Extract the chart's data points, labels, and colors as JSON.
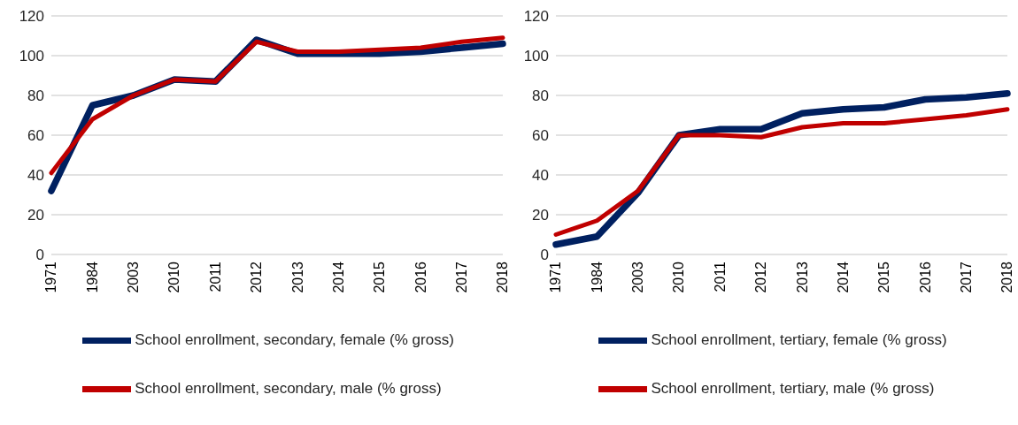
{
  "chart_data": [
    {
      "type": "line",
      "categories": [
        "1971",
        "1984",
        "2003",
        "2010",
        "2011",
        "2012",
        "2013",
        "2014",
        "2015",
        "2016",
        "2017",
        "2018"
      ],
      "series": [
        {
          "name": "School enrollment, secondary, female (% gross)",
          "color": "#002060",
          "values": [
            32,
            75,
            80,
            88,
            87,
            108,
            101,
            101,
            101,
            102,
            104,
            106
          ]
        },
        {
          "name": "School enrollment, secondary, male (% gross)",
          "color": "#c00000",
          "values": [
            41,
            68,
            80,
            88,
            87,
            107,
            102,
            102,
            103,
            104,
            107,
            109
          ]
        }
      ],
      "ylim": [
        0,
        120
      ],
      "yticks": [
        0,
        20,
        40,
        60,
        80,
        100,
        120
      ],
      "grid": "y",
      "legend": "bottom"
    },
    {
      "type": "line",
      "categories": [
        "1971",
        "1984",
        "2003",
        "2010",
        "2011",
        "2012",
        "2013",
        "2014",
        "2015",
        "2016",
        "2017",
        "2018"
      ],
      "series": [
        {
          "name": "School enrollment, tertiary, female (% gross)",
          "color": "#002060",
          "values": [
            5,
            9,
            31,
            60,
            63,
            63,
            71,
            73,
            74,
            78,
            79,
            81
          ]
        },
        {
          "name": "School enrollment, tertiary, male (% gross)",
          "color": "#c00000",
          "values": [
            10,
            17,
            32,
            60,
            60,
            59,
            64,
            66,
            66,
            68,
            70,
            73
          ]
        }
      ],
      "ylim": [
        0,
        120
      ],
      "yticks": [
        0,
        20,
        40,
        60,
        80,
        100,
        120
      ],
      "grid": "y",
      "legend": "bottom"
    }
  ]
}
